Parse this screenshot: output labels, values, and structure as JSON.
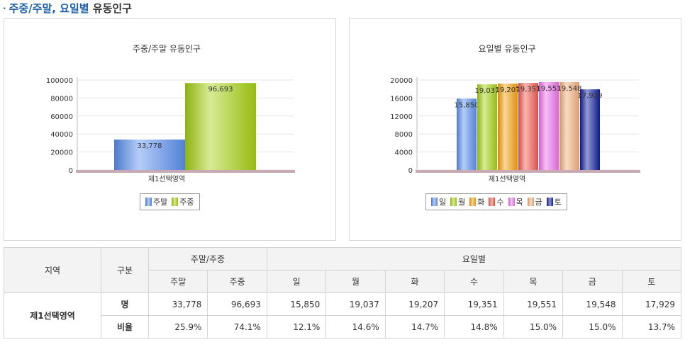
{
  "header": {
    "bullet": "·",
    "title_blue": "주중/주말, 요일별",
    "title_dark": " 유동인구"
  },
  "chart_data": [
    {
      "type": "bar",
      "title": "주중/주말 유동인구",
      "categories": [
        "제1선택영역"
      ],
      "series": [
        {
          "name": "주말",
          "values": [
            33778
          ],
          "color": "#5b8ff0",
          "label": "33,778"
        },
        {
          "name": "주중",
          "values": [
            96693
          ],
          "color": "#a6d213",
          "label": "96,693"
        }
      ],
      "ylim": [
        0,
        100000
      ],
      "yticks": [
        "0",
        "20000",
        "40000",
        "60000",
        "80000",
        "100000"
      ],
      "ytick_values": [
        0,
        20000,
        40000,
        60000,
        80000,
        100000
      ],
      "legend": "bottom",
      "grid": true
    },
    {
      "type": "bar",
      "title": "요일별 유동인구",
      "categories": [
        "제1선택영역"
      ],
      "series": [
        {
          "name": "일",
          "values": [
            15850
          ],
          "color": "#5b8ff0",
          "label": "15,850"
        },
        {
          "name": "월",
          "values": [
            19037
          ],
          "color": "#a6d213",
          "label": "19,037"
        },
        {
          "name": "화",
          "values": [
            19207
          ],
          "color": "#f5a20e",
          "label": "19,207"
        },
        {
          "name": "수",
          "values": [
            19351
          ],
          "color": "#f25a50",
          "label": "19,351"
        },
        {
          "name": "목",
          "values": [
            19551
          ],
          "color": "#ef73ea",
          "label": "19,551"
        },
        {
          "name": "금",
          "values": [
            19548
          ],
          "color": "#f2b07a",
          "label": "19,548"
        },
        {
          "name": "토",
          "values": [
            17929
          ],
          "color": "#101c9a",
          "label": "17,929"
        }
      ],
      "ylim": [
        0,
        20000
      ],
      "yticks": [
        "0",
        "4000",
        "8000",
        "12000",
        "16000",
        "20000"
      ],
      "ytick_values": [
        0,
        4000,
        8000,
        12000,
        16000,
        20000
      ],
      "legend": "bottom",
      "grid": true
    }
  ],
  "table": {
    "h_region": "지역",
    "h_type": "구분",
    "h_weekgroup": "주말/주중",
    "h_daygroup": "요일별",
    "h_weekend": "주말",
    "h_weekday": "주중",
    "days": [
      "일",
      "월",
      "화",
      "수",
      "목",
      "금",
      "토"
    ],
    "region": "제1선택영역",
    "row1_label": "명",
    "row1": [
      "33,778",
      "96,693",
      "15,850",
      "19,037",
      "19,207",
      "19,351",
      "19,551",
      "19,548",
      "17,929"
    ],
    "row2_label": "비율",
    "row2": [
      "25.9%",
      "74.1%",
      "12.1%",
      "14.6%",
      "14.7%",
      "14.8%",
      "15.0%",
      "15.0%",
      "13.7%"
    ]
  }
}
